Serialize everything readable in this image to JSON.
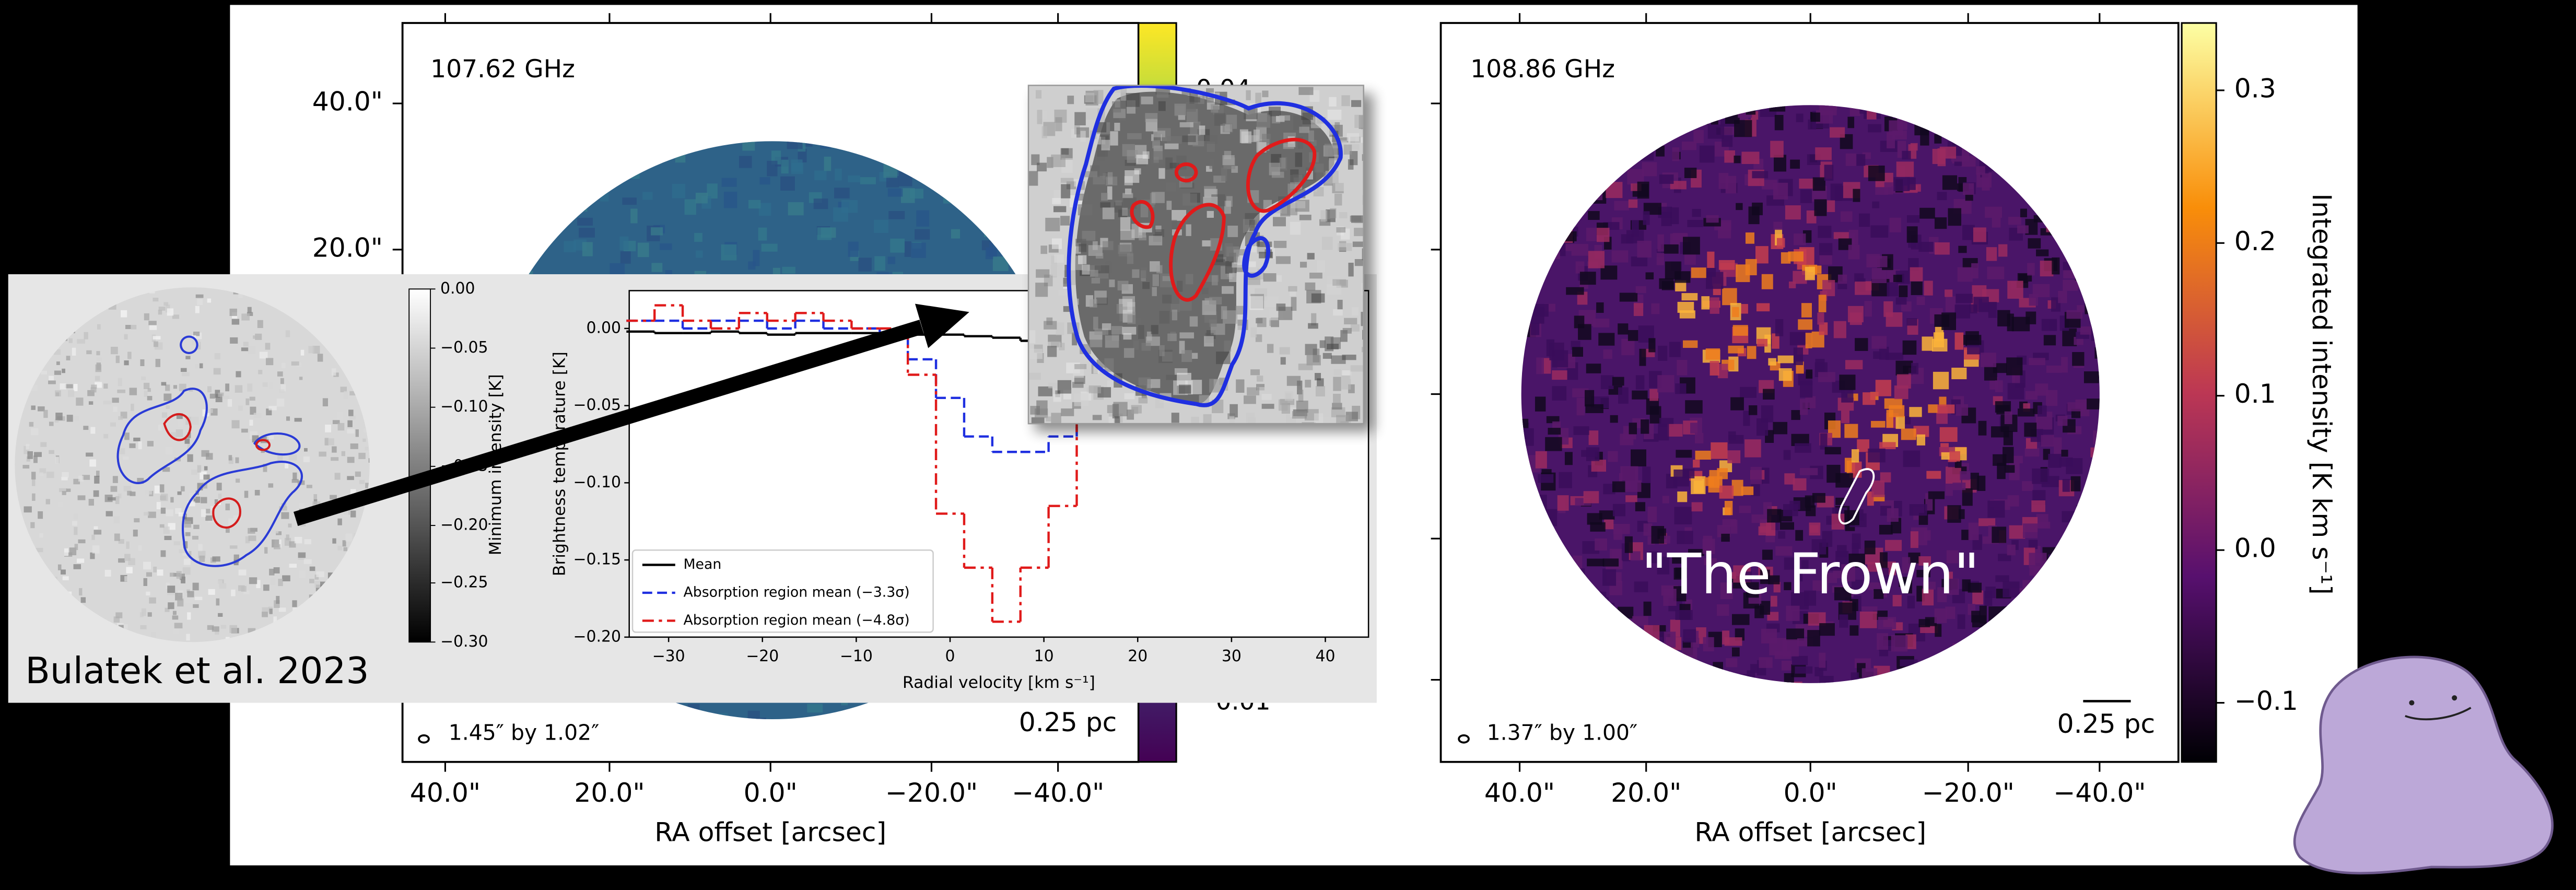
{
  "left_map": {
    "title": "107.62 GHz",
    "yticks": [
      "40.0\"",
      "20.0\""
    ],
    "xticks": [
      "40.0\"",
      "20.0\"",
      "0.0\"",
      "−20.0\"",
      "−40.0\""
    ],
    "xlabel": "RA offset [arcsec]",
    "beam": "1.45″ by 1.02″",
    "scale_bar": "0.25 pc",
    "colorbar_ticks": [
      "0.04",
      "0.01"
    ]
  },
  "right_map": {
    "title": "108.86 GHz",
    "xticks": [
      "40.0\"",
      "20.0\"",
      "0.0\"",
      "−20.0\"",
      "−40.0\""
    ],
    "xlabel": "RA offset [arcsec]",
    "beam": "1.37″ by 1.00″",
    "scale_bar": "0.25 pc",
    "colorbar_ticks": [
      "0.3",
      "0.2",
      "0.1",
      "0.0",
      "−0.1"
    ],
    "colorbar_label": "Integrated intensity [K km s⁻¹]",
    "annotation": "\"The Frown\""
  },
  "inset": {
    "caption": "Bulatek et al. 2023",
    "colorbar_ticks": [
      "0.00",
      "−0.05",
      "−0.10",
      "−0.15",
      "−0.20",
      "−0.25",
      "−0.30"
    ],
    "colorbar_label": "Minimum intensity [K]"
  },
  "chart_data": {
    "type": "line",
    "step": "mid",
    "xlabel": "Radial velocity [km s⁻¹]",
    "ylabel": "Brightness temperature [K]",
    "x": [
      -33,
      -30,
      -27,
      -24,
      -21,
      -18,
      -15,
      -12,
      -9,
      -6,
      -3,
      0,
      3,
      6,
      9,
      12,
      15,
      18
    ],
    "series": [
      {
        "name": "Mean",
        "color": "#000000",
        "dash": "solid",
        "values": [
          -0.002,
          -0.003,
          -0.003,
          -0.002,
          -0.003,
          -0.004,
          -0.003,
          -0.003,
          -0.003,
          -0.003,
          -0.004,
          -0.004,
          -0.005,
          -0.006,
          -0.008,
          -0.01,
          -0.005,
          -0.003
        ]
      },
      {
        "name": "Absorption region mean (−3.3σ)",
        "color": "#1f2fe0",
        "dash": "dashed",
        "values": [
          0.005,
          0.005,
          0.0,
          0.005,
          0.005,
          0.0,
          0.005,
          0.0,
          0.0,
          -0.005,
          -0.02,
          -0.045,
          -0.07,
          -0.08,
          -0.08,
          -0.07,
          -0.03,
          0.0
        ]
      },
      {
        "name": "Absorption region mean (−4.8σ)",
        "color": "#e01a1a",
        "dash": "dashdot",
        "values": [
          0.005,
          0.015,
          0.005,
          0.0,
          0.01,
          0.005,
          0.01,
          0.005,
          0.0,
          0.0,
          -0.03,
          -0.12,
          -0.155,
          -0.19,
          -0.155,
          -0.115,
          -0.05,
          -0.005
        ]
      }
    ],
    "xlim": [
      -34.2,
      44.6
    ],
    "ylim": [
      -0.2,
      0.0245
    ],
    "xticks": [
      {
        "value": -30,
        "label": "−30"
      },
      {
        "value": -20,
        "label": "−20"
      },
      {
        "value": -10,
        "label": "−10"
      },
      0,
      10,
      20,
      30,
      40
    ],
    "yticks": [
      {
        "value": 0,
        "label": "0.00"
      },
      {
        "value": -0.05,
        "label": "−0.05"
      },
      {
        "value": -0.1,
        "label": "−0.10"
      },
      {
        "value": -0.15,
        "label": "−0.15"
      },
      {
        "value": -0.2,
        "label": "−0.20"
      }
    ],
    "legend": "lower left"
  }
}
